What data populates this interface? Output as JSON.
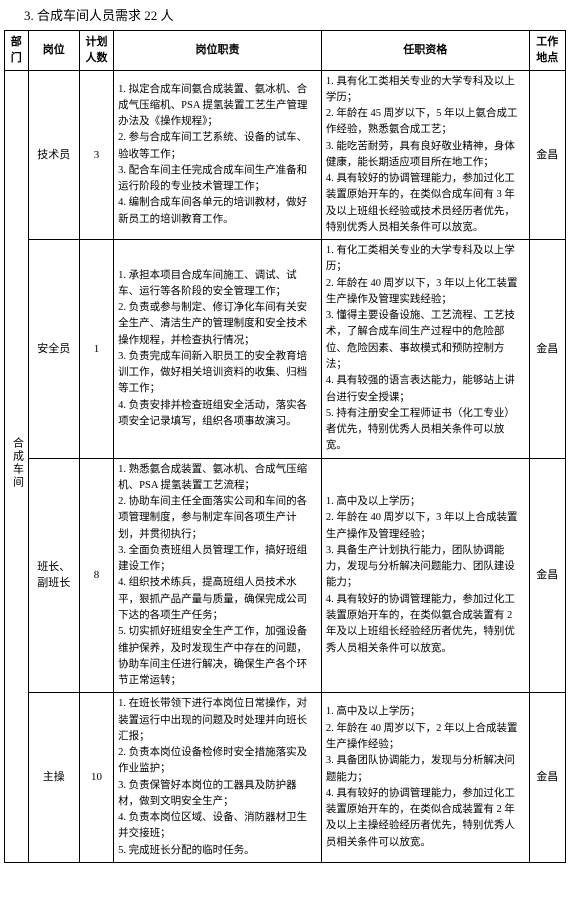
{
  "title": "3. 合成车间人员需求 22 人",
  "headers": {
    "dept": "部门",
    "position": "岗位",
    "count": "计划人数",
    "duty": "岗位职责",
    "qual": "任职资格",
    "location": "工作地点"
  },
  "dept_name": "合成车间",
  "rows": [
    {
      "position": "技术员",
      "count": "3",
      "duties": "1. 拟定合成车间氨合成装置、氨冰机、合成气压缩机、PSA 提氢装置工艺生产管理办法及《操作规程》；\n2. 参与合成车间工艺系统、设备的试车、验收等工作；\n3. 配合车间主任完成合成车间生产准备和运行阶段的专业技术管理工作；\n4. 编制合成车间各单元的培训教材，做好新员工的培训教育工作。",
      "quals": "1. 具有化工类相关专业的大学专科及以上学历；\n2. 年龄在 45 周岁以下，5 年以上氨合成工作经验，熟悉氨合成工艺；\n3. 能吃苦耐劳，具有良好敬业精神，身体健康，能长期适应项目所在地工作；\n4. 具有较好的协调管理能力，参加过化工装置原始开车的，在类似合成车间有 3 年及以上班组长经验或技术员经历者优先，特别优秀人员相关条件可以放宽。",
      "location": "金昌"
    },
    {
      "position": "安全员",
      "count": "1",
      "duties": "1. 承担本项目合成车间施工、调试、试车、运行等各阶段的安全管理工作；\n2. 负责或参与制定、修订净化车间有关安全生产、清洁生产的管理制度和安全技术操作规程，并检查执行情况；\n3. 负责完成车间新入职员工的安全教育培训工作，做好相关培训资料的收集、归档等工作；\n4. 负责安排并检查班组安全活动，落实各项安全记录填写，组织各项事故演习。",
      "quals": "1. 有化工类相关专业的大学专科及以上学历；\n2. 年龄在 40 周岁以下，3 年以上化工装置生产操作及管理实践经验；\n3. 懂得主要设备设施、工艺流程、工艺技术，了解合成车间生产过程中的危险部位、危险因素、事故模式和预防控制方法；\n4. 具有较强的语言表达能力，能够站上讲台进行安全授课；\n5. 持有注册安全工程师证书（化工专业）者优先，特别优秀人员相关条件可以放宽。",
      "location": "金昌"
    },
    {
      "position": "班长、副班长",
      "count": "8",
      "duties": "1. 熟悉氨合成装置、氨冰机、合成气压缩机、PSA 提氢装置工艺流程；\n2. 协助车间主任全面落实公司和车间的各项管理制度，参与制定车间各项生产计划，并贯彻执行；\n3. 全面负责班组人员管理工作，搞好班组建设工作；\n4. 组织技术练兵，提高班组人员技术水平，狠抓产品产量与质量，确保完成公司下达的各项生产任务；\n5. 切实抓好班组安全生产工作，加强设备维护保养，及时发现生产中存在的问题，协助车间主任进行解决，确保生产各个环节正常运转；",
      "quals": "1. 高中及以上学历；\n2. 年龄在 40 周岁以下，3 年以上合成装置生产操作及管理经验；\n3. 具备生产计划执行能力，团队协调能力，发现与分析解决问题能力、团队建设能力；\n4. 具有较好的协调管理能力，参加过化工装置原始开车的，在类似氨合成装置有 2 年及以上班组长经验经历者优先，特别优秀人员相关条件可以放宽。",
      "location": "金昌"
    },
    {
      "position": "主操",
      "count": "10",
      "duties": "1. 在班长带领下进行本岗位日常操作，对装置运行中出现的问题及时处理并向班长汇报；\n2. 负责本岗位设备检修时安全措施落实及作业监护；\n3. 负责保管好本岗位的工器具及防护器材，做到文明安全生产；\n4. 负责本岗位区域、设备、消防器材卫生并交接班；\n5. 完成班长分配的临时任务。",
      "quals": "1. 高中及以上学历；\n2. 年龄在 40 周岁以下，2 年以上合成装置生产操作经验；\n3. 具备团队协调能力，发现与分析解决问题能力；\n4. 具有较好的协调管理能力，参加过化工装置原始开车的，在类似合成装置有 2 年及以上主操经验经历者优先，特别优秀人员相关条件可以放宽。",
      "location": "金昌"
    }
  ]
}
